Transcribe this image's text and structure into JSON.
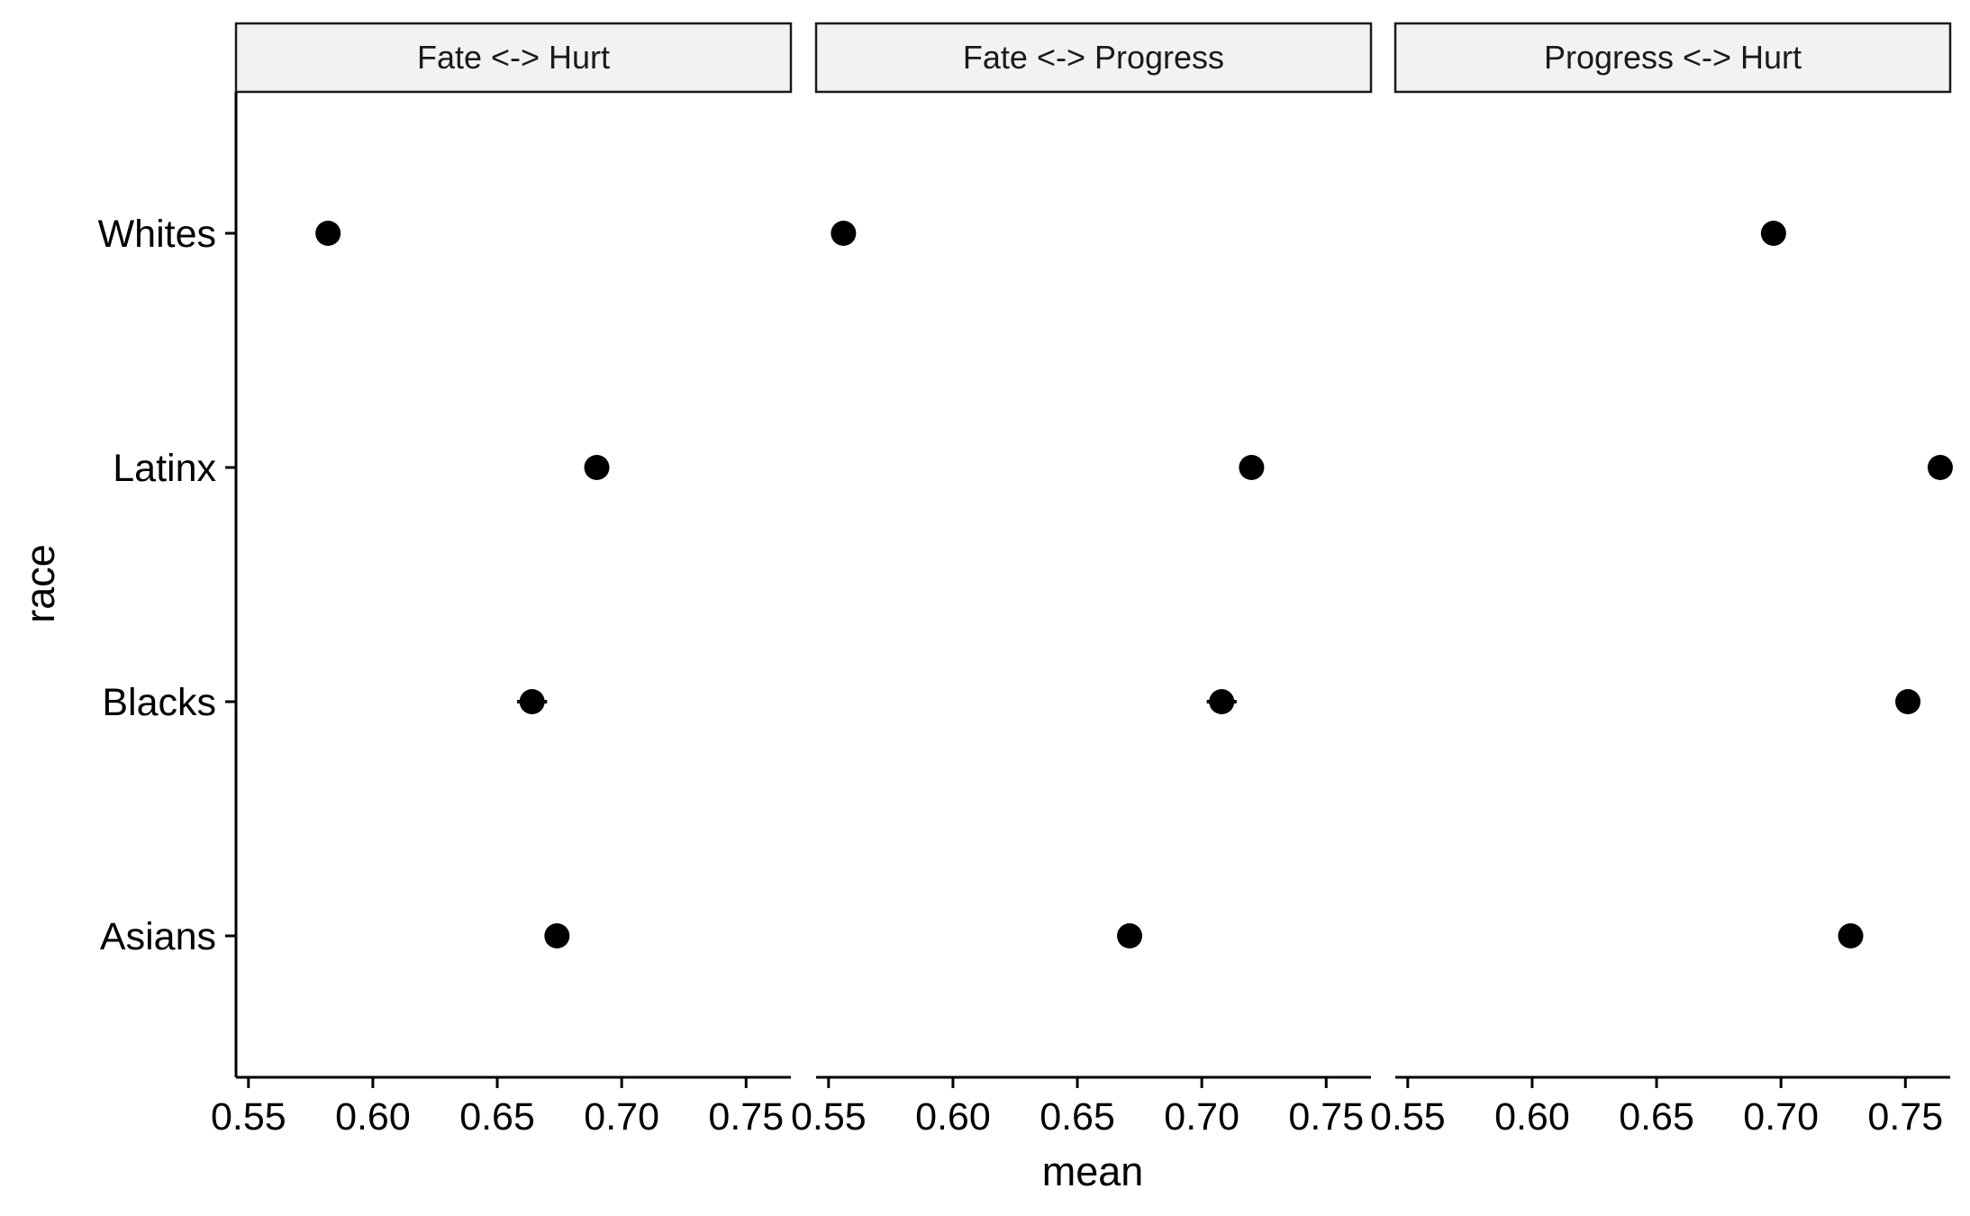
{
  "chart_data": {
    "type": "scatter",
    "xlabel": "mean",
    "ylabel": "race",
    "xlim": [
      0.545,
      0.768
    ],
    "x_ticks": [
      "0.55",
      "0.60",
      "0.65",
      "0.70",
      "0.75"
    ],
    "x_tick_values": [
      0.55,
      0.6,
      0.65,
      0.7,
      0.75
    ],
    "categories": [
      "Whites",
      "Latinx",
      "Blacks",
      "Asians"
    ],
    "panels": [
      {
        "label": "Fate <-> Hurt",
        "points": [
          {
            "race": "Whites",
            "mean": 0.582
          },
          {
            "race": "Latinx",
            "mean": 0.69
          },
          {
            "race": "Blacks",
            "mean": 0.664,
            "err": 0.006
          },
          {
            "race": "Asians",
            "mean": 0.674
          }
        ]
      },
      {
        "label": "Fate <-> Progress",
        "points": [
          {
            "race": "Whites",
            "mean": 0.556
          },
          {
            "race": "Latinx",
            "mean": 0.72
          },
          {
            "race": "Blacks",
            "mean": 0.708,
            "err": 0.006
          },
          {
            "race": "Asians",
            "mean": 0.671
          }
        ]
      },
      {
        "label": "Progress <-> Hurt",
        "points": [
          {
            "race": "Whites",
            "mean": 0.697
          },
          {
            "race": "Latinx",
            "mean": 0.764
          },
          {
            "race": "Blacks",
            "mean": 0.751
          },
          {
            "race": "Asians",
            "mean": 0.728
          }
        ]
      }
    ],
    "colors": {
      "point": "#000000",
      "strip_fill": "#f2f2f2",
      "axis": "#000000"
    },
    "grid": false,
    "legend": "none"
  }
}
